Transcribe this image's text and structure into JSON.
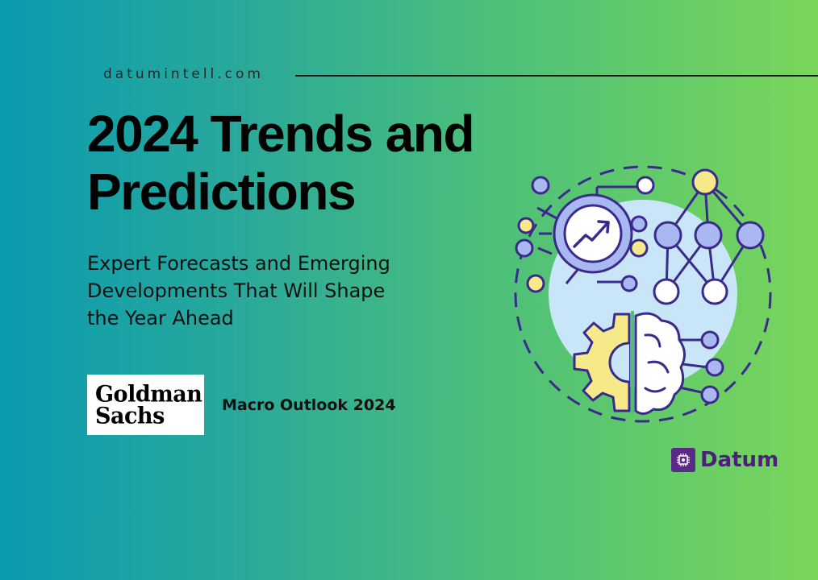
{
  "header": {
    "site": "datumintell.com"
  },
  "hero": {
    "title_line1": "2024 Trends and",
    "title_line2": "Predictions",
    "subtitle_line1": "Expert Forecasts and Emerging",
    "subtitle_line2": "Developments That Will Shape",
    "subtitle_line3": "the Year Ahead"
  },
  "source": {
    "logo_line1": "Goldman",
    "logo_line2": "Sachs",
    "report": "Macro Outlook 2024"
  },
  "brand": {
    "name": "Datum",
    "color": "#5b2a86"
  },
  "illustration": {
    "icons": [
      "chart-trend-icon",
      "network-icon",
      "gear-icon",
      "brain-icon"
    ],
    "colors": {
      "outline": "#3a2a8c",
      "light_blue": "#c8e6f7",
      "node_blue": "#a9b8f0",
      "node_yellow": "#f5e98a",
      "node_white": "#ffffff"
    }
  }
}
